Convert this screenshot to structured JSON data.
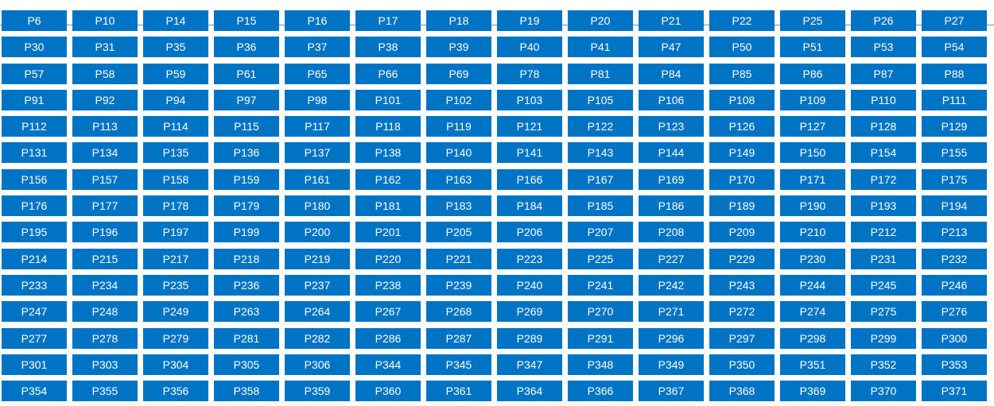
{
  "theme": {
    "tile_bg": "#0074c4",
    "tile_text": "#ffffff",
    "rule_color": "#8a8a8a"
  },
  "tiles": [
    "P6",
    "P10",
    "P14",
    "P15",
    "P16",
    "P17",
    "P18",
    "P19",
    "P20",
    "P21",
    "P22",
    "P25",
    "P26",
    "P27",
    "P30",
    "P31",
    "P35",
    "P36",
    "P37",
    "P38",
    "P39",
    "P40",
    "P41",
    "P47",
    "P50",
    "P51",
    "P53",
    "P54",
    "P57",
    "P58",
    "P59",
    "P61",
    "P65",
    "P66",
    "P69",
    "P78",
    "P81",
    "P84",
    "P85",
    "P86",
    "P87",
    "P88",
    "P91",
    "P92",
    "P94",
    "P97",
    "P98",
    "P101",
    "P102",
    "P103",
    "P105",
    "P106",
    "P108",
    "P109",
    "P110",
    "P111",
    "P112",
    "P113",
    "P114",
    "P115",
    "P117",
    "P118",
    "P119",
    "P121",
    "P122",
    "P123",
    "P126",
    "P127",
    "P128",
    "P129",
    "P131",
    "P134",
    "P135",
    "P136",
    "P137",
    "P138",
    "P140",
    "P141",
    "P143",
    "P144",
    "P149",
    "P150",
    "P154",
    "P155",
    "P156",
    "P157",
    "P158",
    "P159",
    "P161",
    "P162",
    "P163",
    "P166",
    "P167",
    "P169",
    "P170",
    "P171",
    "P172",
    "P175",
    "P176",
    "P177",
    "P178",
    "P179",
    "P180",
    "P181",
    "P183",
    "P184",
    "P185",
    "P186",
    "P189",
    "P190",
    "P193",
    "P194",
    "P195",
    "P196",
    "P197",
    "P199",
    "P200",
    "P201",
    "P205",
    "P206",
    "P207",
    "P208",
    "P209",
    "P210",
    "P212",
    "P213",
    "P214",
    "P215",
    "P217",
    "P218",
    "P219",
    "P220",
    "P221",
    "P223",
    "P225",
    "P227",
    "P229",
    "P230",
    "P231",
    "P232",
    "P233",
    "P234",
    "P235",
    "P236",
    "P237",
    "P238",
    "P239",
    "P240",
    "P241",
    "P242",
    "P243",
    "P244",
    "P245",
    "P246",
    "P247",
    "P248",
    "P249",
    "P263",
    "P264",
    "P267",
    "P268",
    "P269",
    "P270",
    "P271",
    "P272",
    "P274",
    "P275",
    "P276",
    "P277",
    "P278",
    "P279",
    "P281",
    "P282",
    "P286",
    "P287",
    "P289",
    "P291",
    "P296",
    "P297",
    "P298",
    "P299",
    "P300",
    "P301",
    "P303",
    "P304",
    "P305",
    "P306",
    "P344",
    "P345",
    "P347",
    "P348",
    "P349",
    "P350",
    "P351",
    "P352",
    "P353",
    "P354",
    "P355",
    "P356",
    "P358",
    "P359",
    "P360",
    "P361",
    "P364",
    "P366",
    "P367",
    "P368",
    "P369",
    "P370",
    "P371"
  ]
}
